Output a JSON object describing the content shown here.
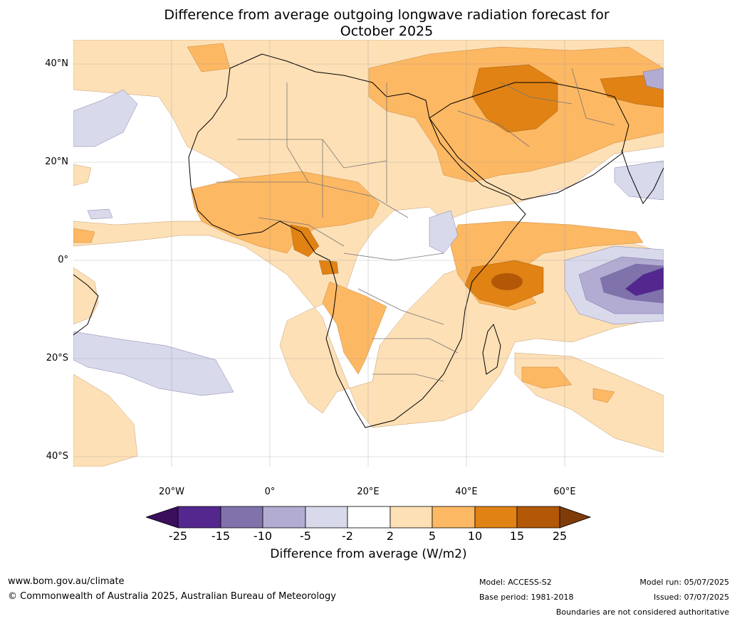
{
  "title_line1": "Difference from average outgoing longwave radiation forecast for",
  "title_line2": "October 2025",
  "map": {
    "lat_labels": [
      "40°N",
      "20°N",
      "0°",
      "20°S",
      "40°S"
    ],
    "lon_labels": [
      "20°W",
      "0°",
      "20°E",
      "40°E",
      "60°E"
    ]
  },
  "colorbar": {
    "levels": [
      "-25",
      "-15",
      "-10",
      "-5",
      "-2",
      "2",
      "5",
      "10",
      "15",
      "25"
    ],
    "colors": [
      "#3b0f5c",
      "#54278f",
      "#8073ac",
      "#b2abd2",
      "#d8daeb",
      "#ffffff",
      "#fee0b6",
      "#fdb863",
      "#e08214",
      "#b35806",
      "#7f3b08"
    ],
    "label": "Difference from average (W/m2)"
  },
  "footer": {
    "website": "www.bom.gov.au/climate",
    "copyright": "© Commonwealth of Australia 2025, Australian Bureau of Meteorology",
    "model": "Model: ACCESS-S2",
    "base_period": "Base period: 1981-2018",
    "model_run": "Model run: 05/07/2025",
    "issued": "Issued: 07/07/2025",
    "disclaimer": "Boundaries are not considered authoritative"
  }
}
